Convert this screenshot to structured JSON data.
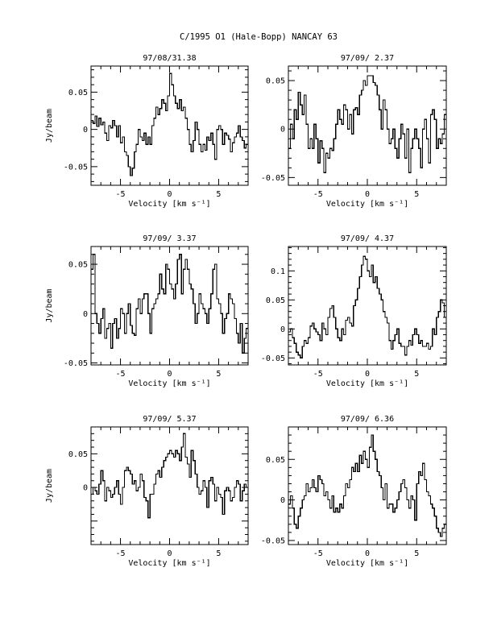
{
  "figure": {
    "title": "C/1995 O1 (Hale-Bopp)   NANCAY    63"
  },
  "chart_data": [
    {
      "type": "line",
      "title": "97/08/31.38",
      "xlabel": "Velocity [km s⁻¹]",
      "ylabel": "Jy/beam",
      "xlim": [
        -8,
        8
      ],
      "ylim": [
        -0.075,
        0.085
      ],
      "xticks": [
        -5,
        0,
        5
      ],
      "yticks": [
        -0.05,
        0,
        0.05
      ],
      "ytick_labels": [
        "-0.05",
        "0",
        "0.05"
      ],
      "x_step": 0.2,
      "x_start": -8,
      "values": [
        0.012,
        0.008,
        0.018,
        0.004,
        0.015,
        0.006,
        0.01,
        -0.005,
        -0.015,
        0.005,
        0.002,
        0.012,
        0.005,
        -0.01,
        0.005,
        -0.018,
        -0.01,
        -0.03,
        -0.035,
        -0.05,
        -0.062,
        -0.052,
        -0.03,
        -0.02,
        0.0,
        -0.01,
        -0.015,
        -0.005,
        -0.02,
        -0.01,
        -0.02,
        0.005,
        0.015,
        0.03,
        0.02,
        0.028,
        0.04,
        0.035,
        0.025,
        0.045,
        0.075,
        0.06,
        0.045,
        0.035,
        0.028,
        0.04,
        0.025,
        0.03,
        0.015,
        0.0,
        -0.02,
        -0.03,
        -0.015,
        0.01,
        0.0,
        -0.02,
        -0.03,
        -0.02,
        -0.028,
        -0.01,
        -0.015,
        -0.005,
        -0.02,
        -0.04,
        0.0,
        0.005,
        0.0,
        -0.02,
        -0.005,
        -0.008,
        -0.013,
        -0.03,
        -0.018,
        -0.01,
        -0.005,
        0.005,
        -0.01,
        -0.015,
        -0.025,
        -0.02
      ]
    },
    {
      "type": "line",
      "title": "97/09/ 2.37",
      "xlabel": "Velocity [km s⁻¹]",
      "ylabel": "",
      "xlim": [
        -8,
        8
      ],
      "ylim": [
        -0.058,
        0.065
      ],
      "xticks": [
        -5,
        0,
        5
      ],
      "yticks": [
        -0.05,
        0,
        0.05
      ],
      "ytick_labels": [
        "-0.05",
        "0",
        "0.05"
      ],
      "x_step": 0.2,
      "x_start": -8,
      "values": [
        -0.02,
        0.005,
        -0.01,
        0.02,
        0.01,
        0.038,
        0.025,
        0.015,
        0.035,
        0.005,
        -0.02,
        -0.01,
        -0.02,
        0.005,
        -0.01,
        -0.035,
        -0.012,
        -0.02,
        -0.045,
        -0.025,
        -0.03,
        -0.02,
        -0.022,
        -0.01,
        0.005,
        0.02,
        0.01,
        0.005,
        0.025,
        0.02,
        0.0,
        0.015,
        -0.005,
        0.02,
        0.022,
        0.015,
        0.035,
        0.04,
        0.05,
        0.045,
        0.055,
        0.055,
        0.055,
        0.048,
        0.045,
        0.035,
        0.02,
        0.0,
        0.03,
        0.02,
        0.0,
        -0.015,
        -0.01,
        0.0,
        -0.02,
        -0.03,
        -0.01,
        0.005,
        -0.005,
        -0.03,
        0.0,
        -0.045,
        -0.02,
        -0.01,
        0.0,
        -0.01,
        -0.02,
        -0.04,
        0.0,
        0.01,
        -0.01,
        -0.035,
        0.015,
        0.02,
        0.01,
        -0.02,
        -0.01,
        -0.015,
        -0.005,
        0.015
      ]
    },
    {
      "type": "line",
      "title": "97/09/ 3.37",
      "xlabel": "Velocity [km s⁻¹]",
      "ylabel": "Jy/beam",
      "xlim": [
        -8,
        8
      ],
      "ylim": [
        -0.052,
        0.068
      ],
      "xticks": [
        -5,
        0,
        5
      ],
      "yticks": [
        -0.05,
        0,
        0.05
      ],
      "ytick_labels": [
        "-0.05",
        "0",
        "0.05"
      ],
      "x_step": 0.2,
      "x_start": -8,
      "values": [
        0.045,
        0.06,
        0.0,
        -0.01,
        -0.02,
        -0.005,
        0.005,
        -0.025,
        -0.015,
        -0.01,
        -0.035,
        -0.01,
        -0.005,
        -0.025,
        -0.015,
        0.005,
        0.0,
        -0.02,
        0.0,
        0.01,
        -0.012,
        -0.02,
        -0.022,
        0.005,
        0.015,
        0.0,
        0.015,
        0.02,
        0.02,
        0.0,
        -0.02,
        0.005,
        0.01,
        0.015,
        0.02,
        0.04,
        0.025,
        0.02,
        0.05,
        0.045,
        0.03,
        0.025,
        0.015,
        0.03,
        0.055,
        0.06,
        0.02,
        0.045,
        0.055,
        0.045,
        0.03,
        0.025,
        0.01,
        -0.01,
        0.0,
        0.02,
        0.01,
        0.005,
        0.0,
        -0.01,
        0.005,
        0.02,
        0.045,
        0.05,
        0.015,
        0.01,
        0.0,
        -0.02,
        -0.005,
        0.0,
        0.02,
        0.015,
        0.01,
        -0.005,
        -0.02,
        -0.03,
        -0.01,
        -0.04,
        -0.025,
        -0.015
      ]
    },
    {
      "type": "line",
      "title": "97/09/ 4.37",
      "xlabel": "Velocity [km s⁻¹]",
      "ylabel": "",
      "xlim": [
        -8,
        8
      ],
      "ylim": [
        -0.062,
        0.142
      ],
      "xticks": [
        -5,
        0,
        5
      ],
      "yticks": [
        -0.05,
        0,
        0.05,
        0.1
      ],
      "ytick_labels": [
        "-0.05",
        "0",
        "0.05",
        "0.1"
      ],
      "x_step": 0.2,
      "x_start": -8,
      "values": [
        -0.005,
        0.0,
        -0.015,
        -0.025,
        -0.04,
        -0.045,
        -0.05,
        -0.03,
        -0.02,
        -0.025,
        -0.015,
        0.005,
        0.01,
        0.0,
        -0.005,
        -0.01,
        -0.02,
        0.01,
        0.0,
        -0.01,
        0.02,
        0.035,
        0.04,
        0.02,
        0.0,
        -0.015,
        -0.02,
        0.0,
        -0.01,
        0.015,
        0.02,
        0.01,
        0.005,
        0.04,
        0.05,
        0.07,
        0.09,
        0.11,
        0.125,
        0.12,
        0.1,
        0.09,
        0.11,
        0.08,
        0.09,
        0.07,
        0.06,
        0.05,
        0.03,
        0.02,
        0.01,
        -0.02,
        -0.035,
        -0.02,
        -0.01,
        0.0,
        -0.025,
        -0.03,
        -0.03,
        -0.045,
        -0.03,
        -0.02,
        -0.028,
        -0.01,
        0.0,
        -0.01,
        -0.025,
        -0.02,
        -0.03,
        -0.03,
        -0.025,
        -0.035,
        -0.03,
        0.0,
        -0.01,
        0.02,
        0.03,
        0.05,
        0.045,
        0.02
      ]
    },
    {
      "type": "line",
      "title": "97/09/ 5.37",
      "xlabel": "Velocity [km s⁻¹]",
      "ylabel": "Jy/beam",
      "xlim": [
        -8,
        8
      ],
      "ylim": [
        -0.085,
        0.09
      ],
      "xticks": [
        -5,
        0,
        5
      ],
      "yticks": [
        0,
        0.05
      ],
      "ytick_labels": [
        "0",
        "0.05"
      ],
      "x_step": 0.2,
      "x_start": -8,
      "values": [
        -0.01,
        0.0,
        -0.005,
        -0.01,
        0.005,
        0.025,
        0.01,
        -0.02,
        0.0,
        -0.005,
        -0.015,
        -0.01,
        0.0,
        0.01,
        -0.01,
        -0.025,
        0.0,
        0.025,
        0.03,
        0.025,
        0.02,
        0.005,
        0.01,
        -0.005,
        0.0,
        0.02,
        0.01,
        -0.015,
        -0.02,
        -0.045,
        -0.01,
        -0.01,
        0.005,
        0.02,
        0.025,
        0.015,
        0.03,
        0.04,
        0.045,
        0.05,
        0.055,
        0.05,
        0.045,
        0.055,
        0.05,
        0.04,
        0.06,
        0.08,
        0.045,
        0.035,
        0.015,
        0.055,
        0.04,
        0.02,
        0.0,
        -0.01,
        -0.005,
        0.01,
        0.0,
        -0.03,
        0.01,
        0.015,
        0.005,
        -0.02,
        0.0,
        -0.01,
        -0.015,
        -0.04,
        -0.005,
        0.0,
        -0.005,
        -0.02,
        -0.015,
        0.0,
        0.01,
        0.005,
        -0.02,
        -0.005,
        0.005,
        0.0
      ]
    },
    {
      "type": "line",
      "title": "97/09/ 6.36",
      "xlabel": "Velocity [km s⁻¹]",
      "ylabel": "",
      "xlim": [
        -8,
        8
      ],
      "ylim": [
        -0.055,
        0.09
      ],
      "xticks": [
        -5,
        0,
        5
      ],
      "yticks": [
        -0.05,
        0,
        0.05
      ],
      "ytick_labels": [
        "-0.05",
        "0",
        "0.05"
      ],
      "x_step": 0.2,
      "x_start": -8,
      "values": [
        -0.005,
        0.005,
        -0.01,
        -0.03,
        -0.035,
        -0.02,
        -0.01,
        0.0,
        0.005,
        0.02,
        0.01,
        0.015,
        0.025,
        0.015,
        0.01,
        0.03,
        0.025,
        0.02,
        0.005,
        0.01,
        0.0,
        -0.01,
        0.005,
        -0.015,
        -0.01,
        -0.015,
        -0.005,
        -0.01,
        0.005,
        0.02,
        0.015,
        0.025,
        0.04,
        0.035,
        0.045,
        0.035,
        0.055,
        0.045,
        0.06,
        0.05,
        0.04,
        0.065,
        0.08,
        0.06,
        0.05,
        0.035,
        0.03,
        0.015,
        0.0,
        0.02,
        -0.01,
        -0.005,
        -0.005,
        -0.015,
        -0.01,
        0.0,
        0.01,
        0.02,
        0.025,
        0.015,
        0.0,
        -0.01,
        0.005,
        0.0,
        -0.025,
        0.02,
        0.035,
        0.03,
        0.045,
        0.025,
        0.01,
        0.005,
        -0.005,
        -0.01,
        -0.02,
        -0.035,
        -0.04,
        -0.045,
        -0.035,
        -0.03
      ]
    }
  ]
}
